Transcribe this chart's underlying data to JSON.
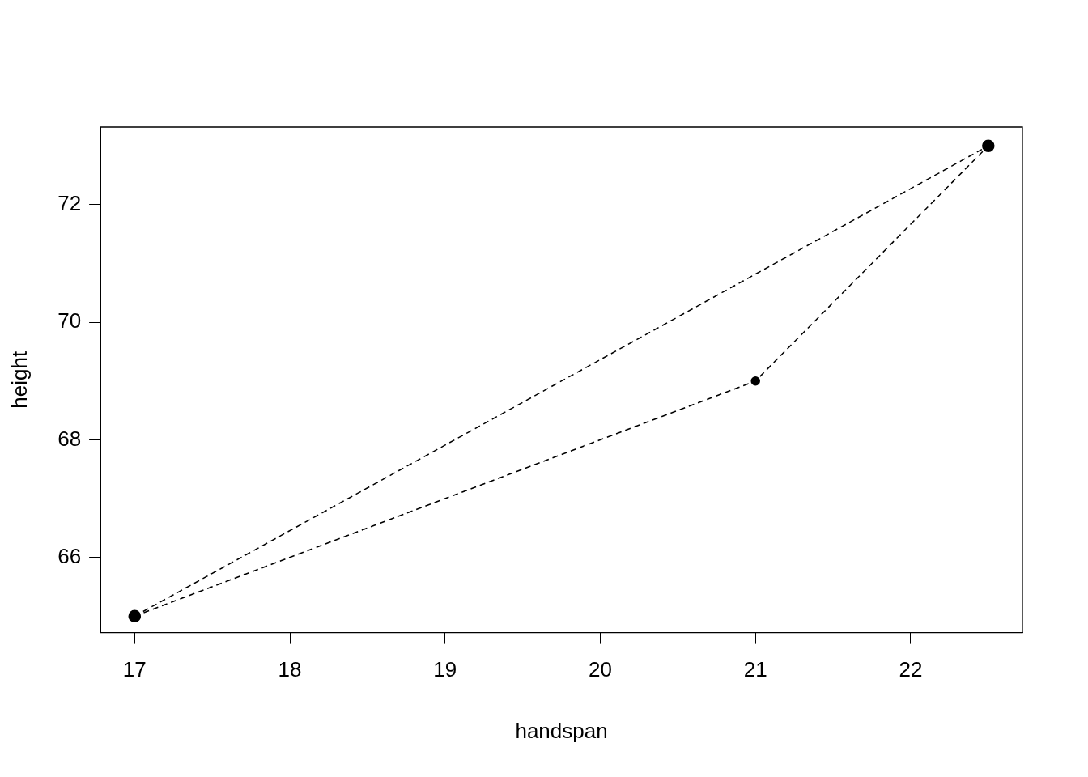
{
  "chart_data": {
    "type": "line",
    "xlabel": "handspan",
    "ylabel": "height",
    "series": [
      {
        "color": "#000000",
        "x": [
          17,
          21,
          22.5
        ],
        "values": [
          65,
          69,
          73
        ]
      },
      {
        "color": "#000000",
        "x": [
          17,
          22.5
        ],
        "values": [
          65,
          73
        ]
      }
    ],
    "xlim": [
      16.78,
      22.72
    ],
    "xticks": [
      17,
      18,
      19,
      20,
      21,
      22
    ],
    "ylim": [
      64.72,
      73.32
    ],
    "yticks": [
      66,
      68,
      70,
      72
    ],
    "grid": false,
    "legend": false,
    "marker": "circle",
    "line_style": "dashed"
  }
}
